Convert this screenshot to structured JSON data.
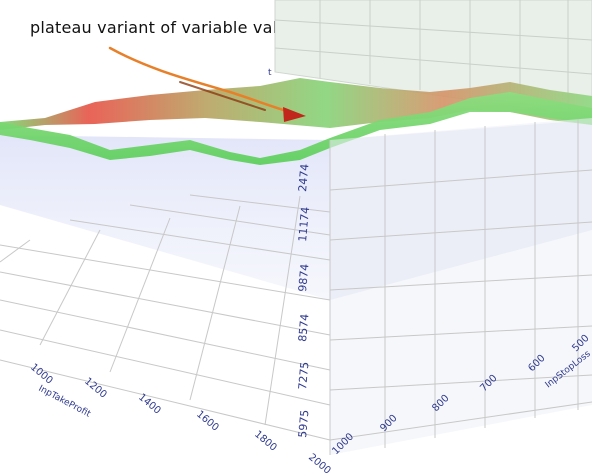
{
  "annotation": "plateau variant of variable values",
  "chart_data": {
    "type": "surface-3d",
    "x_axis": {
      "label": "InpTakeProfit",
      "ticks": [
        "1000",
        "1200",
        "1400",
        "1600",
        "1800",
        "2000"
      ]
    },
    "y_axis": {
      "label": "InpStopLoss",
      "ticks": [
        "1000",
        "900",
        "800",
        "700",
        "600",
        "500"
      ]
    },
    "z_axis": {
      "ticks": [
        "2474",
        "11174",
        "9874",
        "8574",
        "7275",
        "5975"
      ]
    },
    "colors": {
      "surface_green": "#6fd86a",
      "surface_red": "#e8574a",
      "floor_wall": "#e6e9f7",
      "arrow": "#e07a2a"
    }
  }
}
